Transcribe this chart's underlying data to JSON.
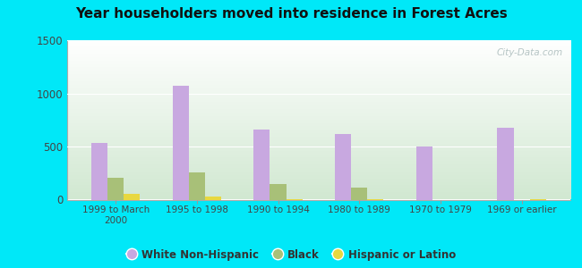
{
  "title": "Year householders moved into residence in Forest Acres",
  "categories": [
    "1999 to March\n2000",
    "1995 to 1998",
    "1990 to 1994",
    "1980 to 1989",
    "1970 to 1979",
    "1969 or earlier"
  ],
  "white_non_hispanic": [
    535,
    1070,
    660,
    615,
    500,
    680
  ],
  "black": [
    205,
    255,
    145,
    110,
    0,
    0
  ],
  "hispanic_or_latino": [
    55,
    28,
    8,
    5,
    0,
    5
  ],
  "bar_color_white": "#c8a8e0",
  "bar_color_black": "#a8c078",
  "bar_color_hispanic": "#e8d840",
  "ylim": [
    0,
    1500
  ],
  "yticks": [
    0,
    500,
    1000,
    1500
  ],
  "bg_outer": "#00e8f8",
  "watermark": "City-Data.com",
  "legend_labels": [
    "White Non-Hispanic",
    "Black",
    "Hispanic or Latino"
  ]
}
